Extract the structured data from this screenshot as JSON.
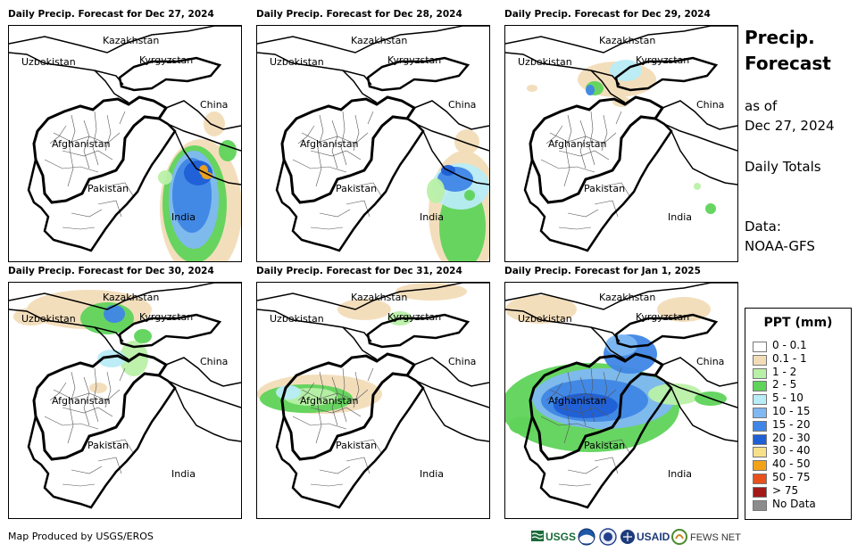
{
  "panels": [
    {
      "title": "Daily Precip. Forecast for Dec 27, 2024",
      "pattern": "d1"
    },
    {
      "title": "Daily Precip. Forecast for Dec 28, 2024",
      "pattern": "d2"
    },
    {
      "title": "Daily Precip. Forecast for Dec 29, 2024",
      "pattern": "d3"
    },
    {
      "title": "Daily Precip. Forecast for Dec 30, 2024",
      "pattern": "d4"
    },
    {
      "title": "Daily Precip. Forecast for Dec 31, 2024",
      "pattern": "d5"
    },
    {
      "title": "Daily Precip. Forecast for Jan 1, 2025",
      "pattern": "d6"
    }
  ],
  "map_labels": {
    "kazakhstan": "Kazakhstan",
    "uzbekistan": "Uzbekistan",
    "kyrgyzstan": "Kyrgyzstan",
    "china": "China",
    "afghanistan": "Afghanistan",
    "pakistan": "Pakistan",
    "india": "India"
  },
  "sidebar": {
    "title_line1": "Precip.",
    "title_line2": "Forecast",
    "as_of_line1": "as of",
    "as_of_line2": "Dec 27, 2024",
    "totals": "Daily Totals",
    "data_label": "Data:",
    "data_source": "NOAA-GFS"
  },
  "legend": {
    "title": "PPT (mm)",
    "items": [
      {
        "label": "0 - 0.1",
        "color": "#ffffff"
      },
      {
        "label": "0.1 - 1",
        "color": "#f2dcb8"
      },
      {
        "label": "1 - 2",
        "color": "#b9f0a8"
      },
      {
        "label": "2 - 5",
        "color": "#5fd35a"
      },
      {
        "label": "5 - 10",
        "color": "#b8ecf7"
      },
      {
        "label": "10 - 15",
        "color": "#7fb8f2"
      },
      {
        "label": "15 - 20",
        "color": "#3f86e6"
      },
      {
        "label": "20 - 30",
        "color": "#1f5fd6"
      },
      {
        "label": "30 - 40",
        "color": "#f7e08a"
      },
      {
        "label": "40 - 50",
        "color": "#f2a31a"
      },
      {
        "label": "50 - 75",
        "color": "#e8501c"
      },
      {
        "label": "> 75",
        "color": "#a31818"
      },
      {
        "label": "No Data",
        "color": "#8c8c8c"
      }
    ]
  },
  "footer": {
    "credit": "Map Produced by USGS/EROS",
    "logos": [
      "USGS",
      "NOAA",
      "DOI",
      "USAID",
      "FEWS NET"
    ]
  }
}
